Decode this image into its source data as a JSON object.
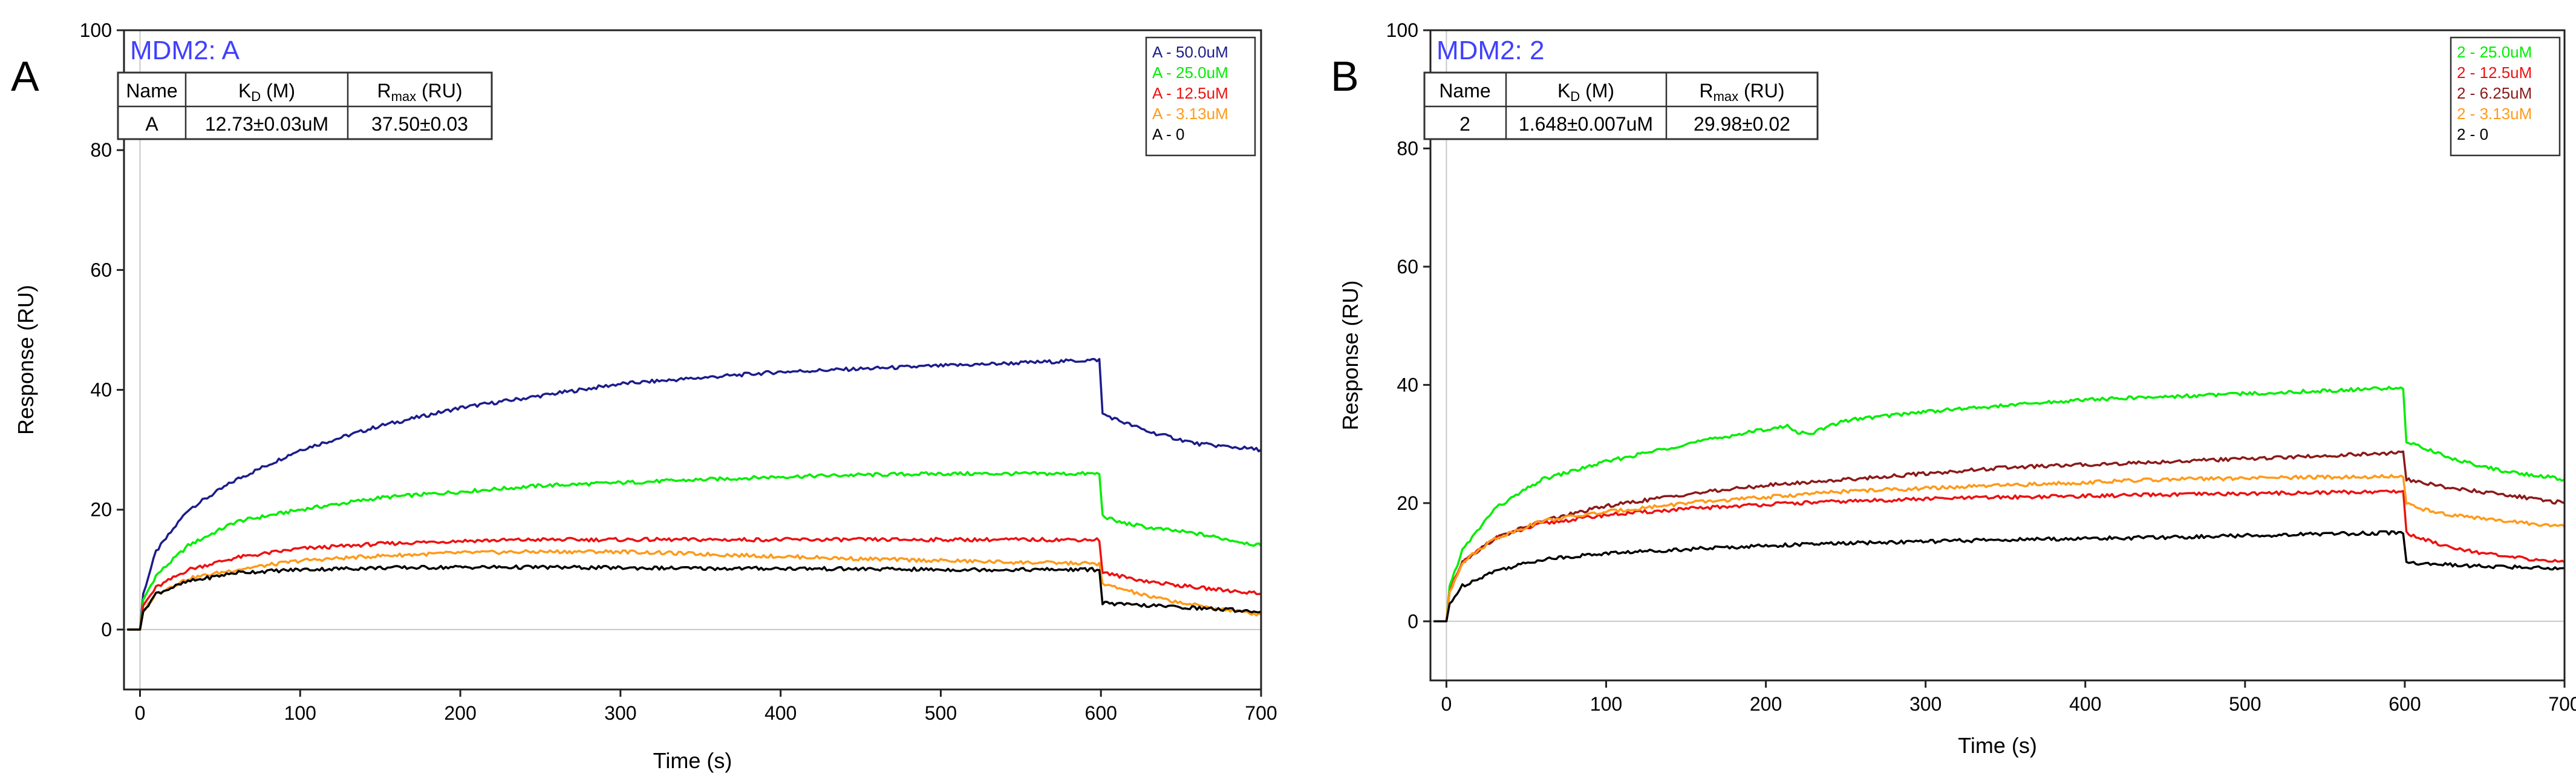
{
  "panels": [
    {
      "letter": "A",
      "title": "MDM2: A",
      "fit_table": {
        "headers": [
          "Name",
          "K_D (M)",
          "R_max (RU)"
        ],
        "header_main": [
          "Name",
          "K",
          "R"
        ],
        "header_sub": [
          "",
          "D",
          "max"
        ],
        "header_unit": [
          "",
          " (M)",
          " (RU)"
        ],
        "row": [
          "A",
          "12.73±0.03uM",
          "37.50±0.03"
        ]
      }
    },
    {
      "letter": "B",
      "title": "MDM2: 2",
      "fit_table": {
        "headers": [
          "Name",
          "K_D (M)",
          "R_max (RU)"
        ],
        "header_main": [
          "Name",
          "K",
          "R"
        ],
        "header_sub": [
          "",
          "D",
          "max"
        ],
        "header_unit": [
          "",
          " (M)",
          " (RU)"
        ],
        "row": [
          "2",
          "1.648±0.007uM",
          "29.98±0.02"
        ]
      }
    }
  ],
  "chart_data": [
    {
      "type": "line",
      "title": "MDM2: A",
      "xlabel": "Time (s)",
      "ylabel": "Response (RU)",
      "xlim": [
        -10,
        700
      ],
      "ylim": [
        -10,
        100
      ],
      "xticks": [
        0,
        100,
        200,
        300,
        400,
        500,
        600,
        700
      ],
      "yticks": [
        0,
        20,
        40,
        60,
        80,
        100
      ],
      "legend_position": "top-right",
      "series": [
        {
          "name": "A - 50.0uM",
          "color": "#1c1c8c",
          "x": [
            -8,
            0,
            2,
            10,
            30,
            60,
            100,
            150,
            200,
            250,
            300,
            350,
            400,
            450,
            500,
            550,
            599,
            601,
            610,
            630,
            660,
            700
          ],
          "y": [
            0,
            0,
            6,
            13,
            20,
            25,
            30,
            34,
            37,
            39,
            41,
            42,
            43,
            43.5,
            44,
            44.5,
            45,
            36,
            35,
            33,
            31,
            30
          ]
        },
        {
          "name": "A - 25.0uM",
          "color": "#00ee00",
          "x": [
            -8,
            0,
            2,
            10,
            30,
            60,
            100,
            150,
            200,
            250,
            300,
            350,
            400,
            450,
            500,
            550,
            599,
            601,
            610,
            630,
            660,
            700
          ],
          "y": [
            0,
            0,
            5,
            9,
            14,
            18,
            20,
            22,
            23,
            24,
            24.5,
            25,
            25.5,
            25.8,
            26,
            26,
            26,
            19,
            18,
            17,
            16,
            14
          ]
        },
        {
          "name": "A - 12.5uM",
          "color": "#ee1111",
          "x": [
            -8,
            0,
            2,
            10,
            30,
            60,
            100,
            150,
            200,
            250,
            300,
            350,
            400,
            450,
            500,
            550,
            599,
            601,
            610,
            630,
            660,
            700
          ],
          "y": [
            0,
            0,
            4,
            7,
            10,
            12,
            13.5,
            14.3,
            14.8,
            15,
            15,
            15,
            15,
            15,
            15,
            15,
            15,
            9.5,
            9,
            8,
            7,
            6
          ]
        },
        {
          "name": "A - 3.13uM",
          "color": "#ff9a1a",
          "x": [
            -8,
            0,
            2,
            10,
            30,
            60,
            100,
            150,
            200,
            250,
            300,
            350,
            400,
            450,
            500,
            550,
            599,
            601,
            610,
            630,
            660,
            700
          ],
          "y": [
            0,
            0,
            3,
            6,
            8.5,
            10,
            11.5,
            12.3,
            12.8,
            13,
            13,
            12.6,
            12.2,
            11.8,
            11.5,
            11.2,
            11,
            7.5,
            7,
            5.5,
            4,
            2.5
          ]
        },
        {
          "name": "A - 0",
          "color": "#000000",
          "x": [
            -8,
            0,
            2,
            10,
            30,
            60,
            100,
            150,
            200,
            250,
            300,
            350,
            400,
            450,
            500,
            550,
            599,
            601,
            610,
            630,
            660,
            700
          ],
          "y": [
            0,
            0,
            3,
            6,
            8,
            9.5,
            10,
            10.3,
            10.4,
            10.4,
            10.3,
            10.2,
            10.2,
            10.1,
            10,
            10,
            10,
            4.5,
            4.2,
            4,
            3.6,
            3
          ]
        }
      ]
    },
    {
      "type": "line",
      "title": "MDM2: 2",
      "xlabel": "Time (s)",
      "ylabel": "Response (RU)",
      "xlim": [
        -10,
        700
      ],
      "ylim": [
        -10,
        100
      ],
      "xticks": [
        0,
        100,
        200,
        300,
        400,
        500,
        600,
        700
      ],
      "yticks": [
        0,
        20,
        40,
        60,
        80,
        100
      ],
      "legend_position": "top-right",
      "series": [
        {
          "name": "2 - 25.0uM",
          "color": "#00ee00",
          "x": [
            -8,
            0,
            2,
            10,
            30,
            60,
            100,
            150,
            200,
            215,
            220,
            230,
            250,
            300,
            350,
            400,
            450,
            500,
            550,
            599,
            601,
            610,
            630,
            660,
            700
          ],
          "y": [
            0,
            0,
            6,
            12,
            19,
            24,
            27,
            30,
            32.5,
            33,
            31.8,
            32,
            34,
            35.5,
            36.5,
            37.5,
            38,
            38.5,
            39,
            39.5,
            30.5,
            29.5,
            27.5,
            25.5,
            24
          ]
        },
        {
          "name": "2 - 12.5uM",
          "color": "#ee1111",
          "x": [
            -8,
            0,
            2,
            10,
            30,
            60,
            100,
            150,
            200,
            250,
            300,
            350,
            400,
            450,
            500,
            550,
            599,
            601,
            610,
            630,
            660,
            700
          ],
          "y": [
            0,
            0,
            5,
            10,
            14,
            16.5,
            18,
            19,
            19.8,
            20.3,
            20.7,
            21,
            21.2,
            21.4,
            21.6,
            21.8,
            22,
            15,
            14,
            12.5,
            11,
            10
          ]
        },
        {
          "name": "2 - 6.25uM",
          "color": "#8b1a1a",
          "x": [
            -8,
            0,
            2,
            10,
            30,
            60,
            100,
            150,
            200,
            250,
            300,
            350,
            400,
            450,
            500,
            550,
            599,
            601,
            610,
            630,
            660,
            700
          ],
          "y": [
            0,
            0,
            5,
            10,
            14,
            17,
            19.5,
            21.5,
            23,
            24,
            25,
            26,
            26.5,
            27,
            27.5,
            28,
            28.5,
            24,
            23.5,
            22.5,
            21.5,
            20
          ]
        },
        {
          "name": "2 - 3.13uM",
          "color": "#ff9a1a",
          "x": [
            -8,
            0,
            2,
            10,
            30,
            60,
            100,
            150,
            200,
            250,
            300,
            350,
            400,
            450,
            500,
            550,
            599,
            601,
            610,
            630,
            660,
            700
          ],
          "y": [
            0,
            0,
            5,
            10,
            14,
            17,
            18.5,
            20,
            21,
            22,
            22.5,
            23,
            23.5,
            24,
            24.2,
            24.4,
            24.5,
            20,
            19,
            18,
            17,
            16
          ]
        },
        {
          "name": "2 - 0",
          "color": "#000000",
          "x": [
            -8,
            0,
            2,
            10,
            30,
            60,
            100,
            150,
            200,
            250,
            300,
            350,
            400,
            450,
            500,
            550,
            599,
            601,
            610,
            630,
            660,
            700
          ],
          "y": [
            0,
            0,
            3,
            6,
            8.5,
            10.5,
            11.5,
            12.2,
            12.8,
            13.2,
            13.5,
            13.8,
            14,
            14.2,
            14.5,
            14.8,
            15,
            10,
            9.8,
            9.5,
            9.2,
            9
          ]
        }
      ]
    }
  ]
}
